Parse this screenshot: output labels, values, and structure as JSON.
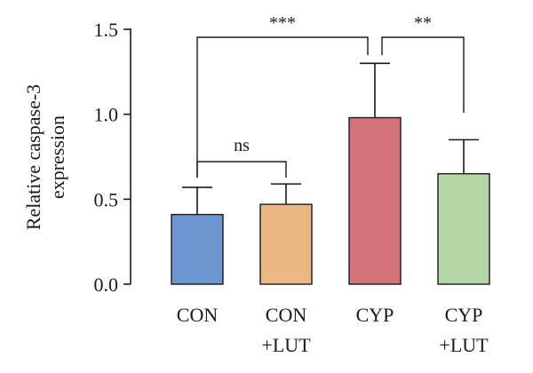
{
  "chart_data": {
    "type": "bar",
    "categories": [
      [
        "CON"
      ],
      [
        "CON",
        "+LUT"
      ],
      [
        "CYP"
      ],
      [
        "CYP",
        "+LUT"
      ]
    ],
    "values": [
      0.41,
      0.47,
      0.98,
      0.65
    ],
    "errors": [
      0.16,
      0.12,
      0.32,
      0.2
    ],
    "colors": [
      "#6c96cf",
      "#ebb884",
      "#d5737b",
      "#b3d7a5"
    ],
    "ylabel": [
      "Relative caspase-3",
      "expression"
    ],
    "ylim": [
      0.0,
      1.5
    ],
    "yticks": [
      "0.0",
      "0.5",
      "1.0",
      "1.5"
    ],
    "ytick_values": [
      0.0,
      0.5,
      1.0,
      1.5
    ],
    "grid": false,
    "significance": [
      {
        "from": 0,
        "to": 1,
        "label": "ns"
      },
      {
        "from": 0,
        "to": 2,
        "label": "***"
      },
      {
        "from": 2,
        "to": 3,
        "label": "**"
      }
    ]
  }
}
